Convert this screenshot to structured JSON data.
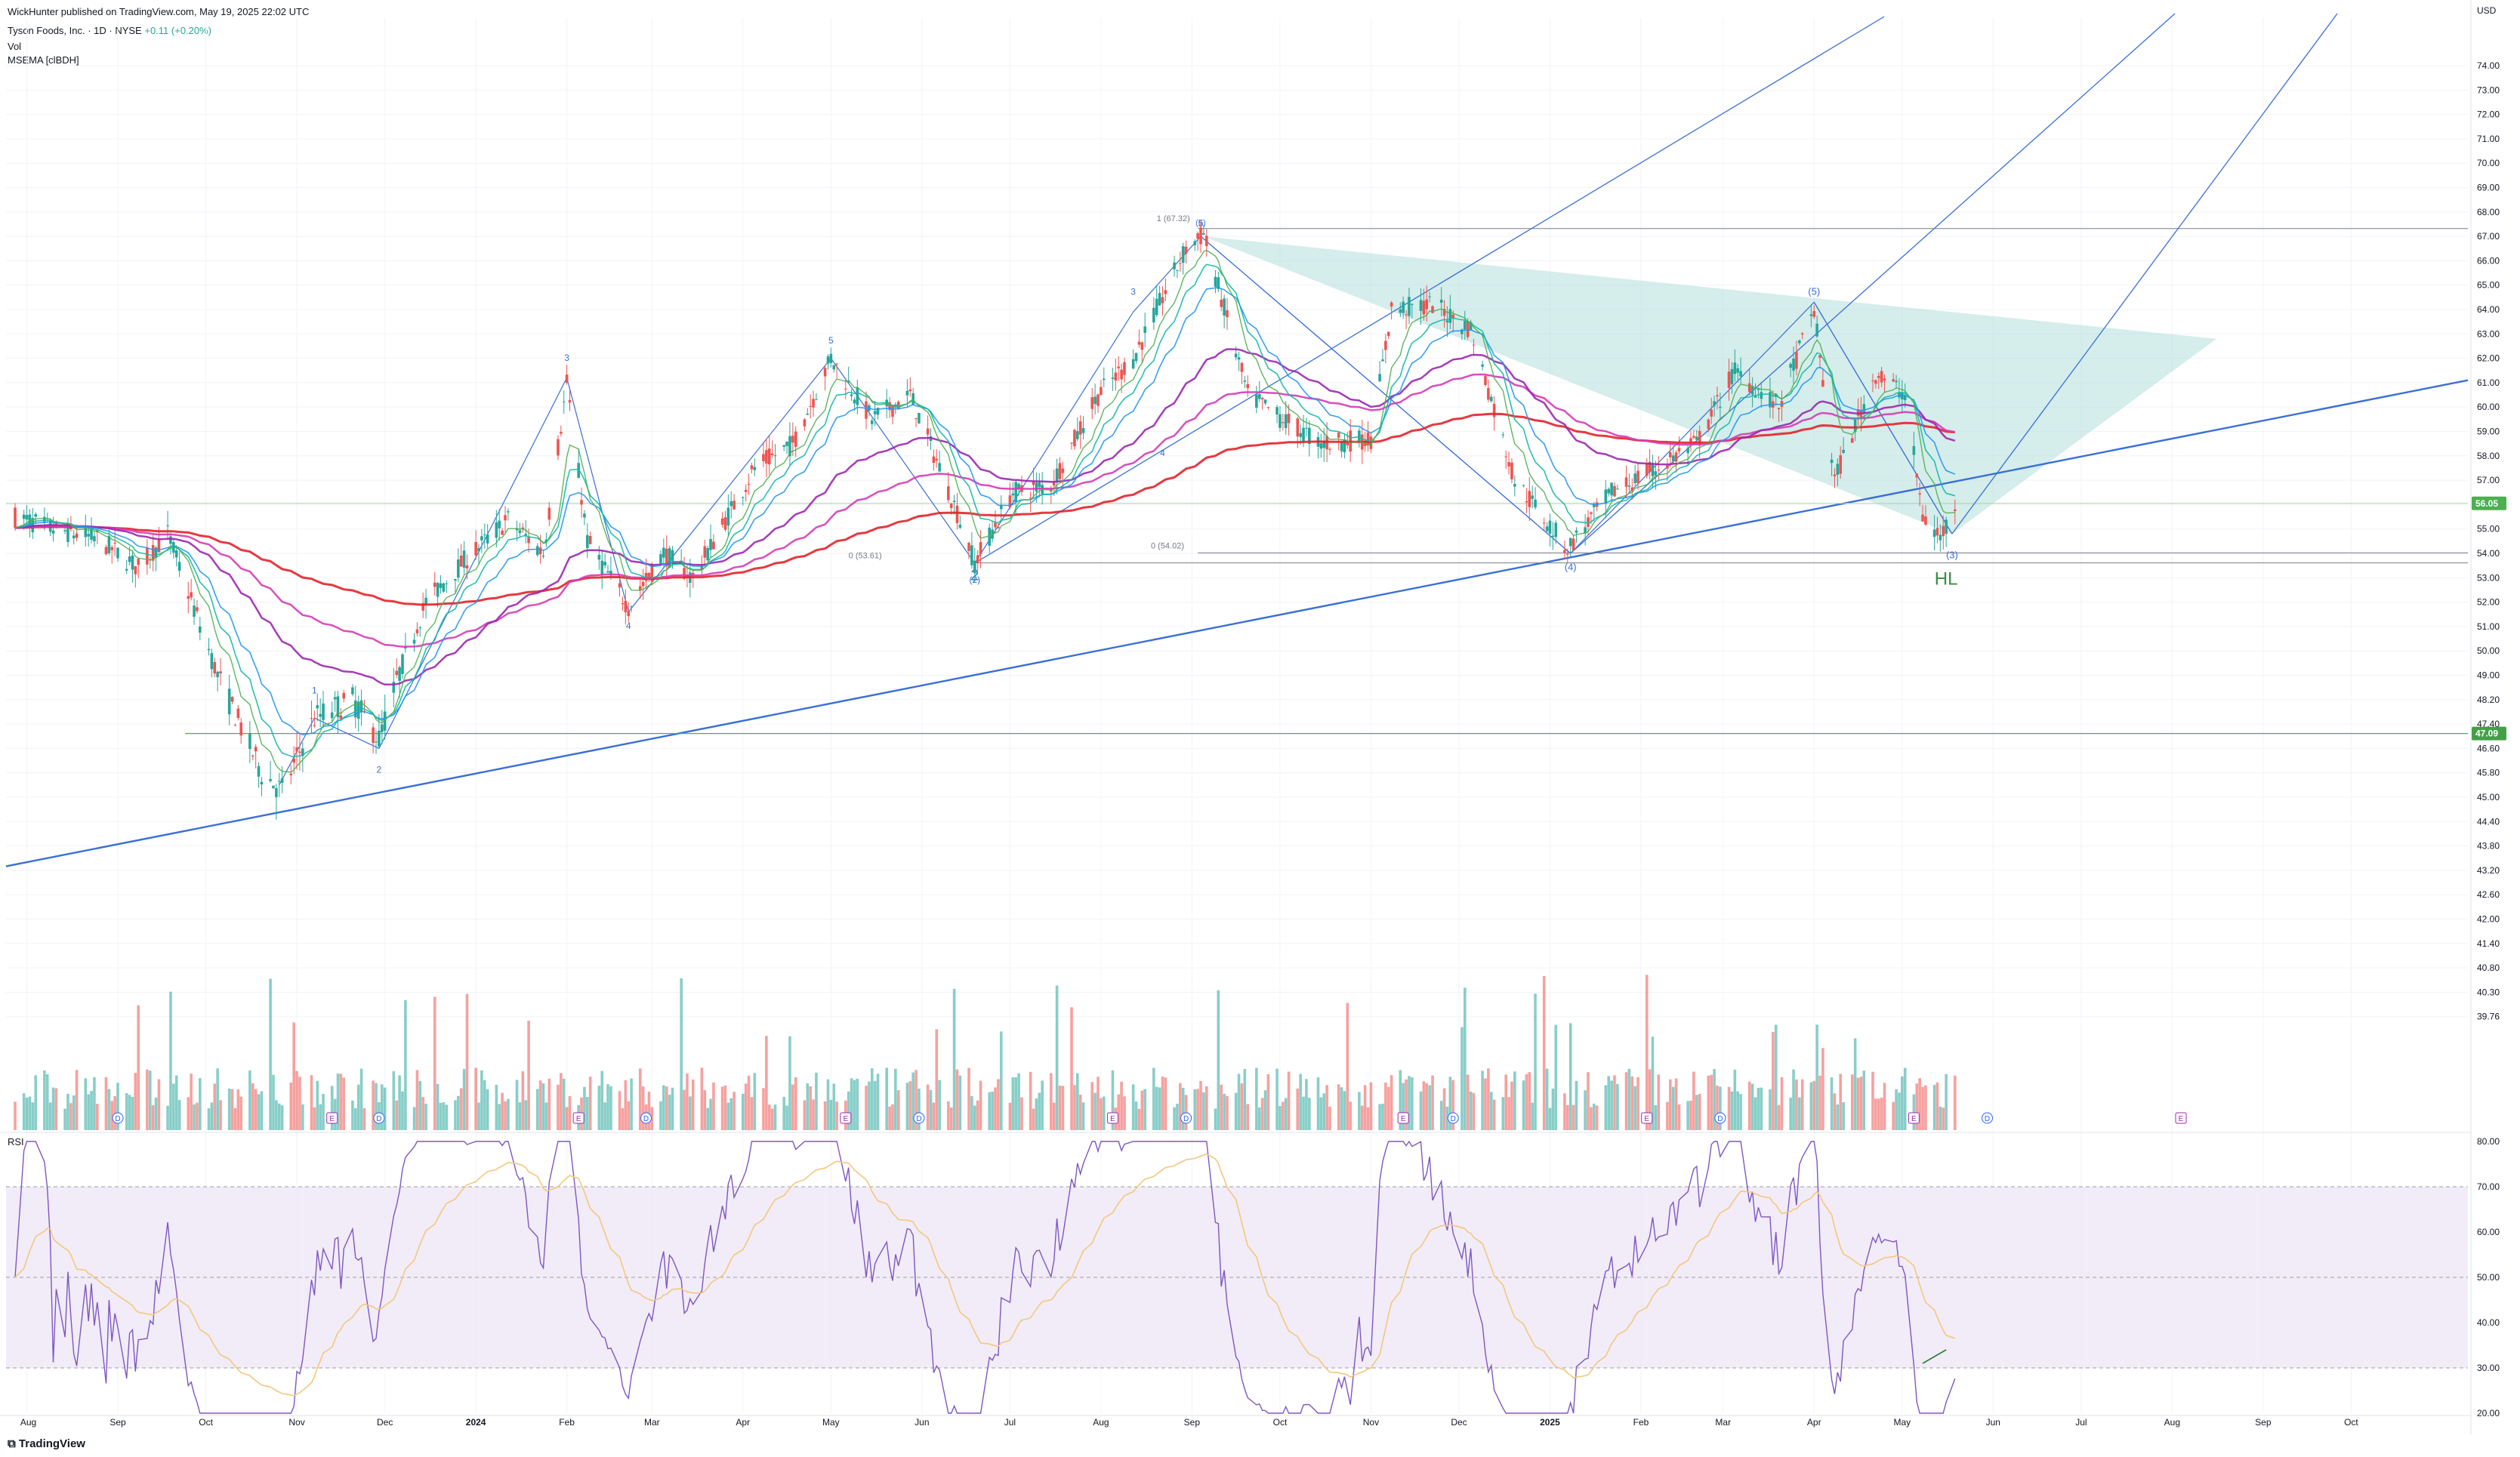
{
  "header": {
    "publisher_line": "WickHunter published on TradingView.com, May 19, 2025 22:02 UTC",
    "symbol_line": "Tyson Foods, Inc. · 1D · NYSE",
    "change": "+0.11 (+0.20%)",
    "vol_label": "Vol",
    "ma_label": "MSEMA [clBDH]",
    "rsi_label": "RSI",
    "currency": "USD"
  },
  "footer": {
    "brand": "TradingView"
  },
  "colors": {
    "bull": "#26a69a",
    "bear": "#ef5350",
    "ma_red": "#e3242b",
    "ma_purple": "#9c27b0",
    "ma_magenta": "#d63bb5",
    "ma_blue": "#2196f3",
    "ma_teal": "#14b8a6",
    "ma_green": "#4caf50",
    "trend": "#3a6fd8",
    "zone": "#b2dfdb",
    "rsi": "#7e57c2",
    "rsi_ma": "#f4c77e",
    "rsi_band": "#ede7f6"
  },
  "chart_data": {
    "type": "candlestick",
    "price_axis": {
      "ticks": [
        "74.00",
        "73.00",
        "72.00",
        "71.00",
        "70.00",
        "69.00",
        "68.00",
        "67.00",
        "66.00",
        "65.00",
        "64.00",
        "63.00",
        "62.00",
        "61.00",
        "60.00",
        "59.00",
        "58.00",
        "57.00",
        "56.00",
        "55.00",
        "54.00",
        "53.00",
        "52.00",
        "51.00",
        "50.00",
        "49.00",
        "48.20",
        "47.40",
        "46.60",
        "45.80",
        "45.00",
        "44.40",
        "43.80",
        "43.20",
        "42.60",
        "42.00",
        "41.40",
        "40.80",
        "40.30",
        "39.76"
      ],
      "last_price": "56.05",
      "level_label": "47.09"
    },
    "time_axis": [
      "Aug",
      "Sep",
      "Oct",
      "Nov",
      "Dec",
      "2024",
      "Feb",
      "Mar",
      "Apr",
      "May",
      "Jun",
      "Jul",
      "Aug",
      "Sep",
      "Oct",
      "Nov",
      "Dec",
      "2025",
      "Feb",
      "Mar",
      "Apr",
      "May",
      "Jun",
      "Jul",
      "Aug",
      "Sep",
      "Oct"
    ],
    "rsi_axis": [
      "80.00",
      "70.00",
      "60.00",
      "50.00",
      "40.00",
      "30.00",
      "20.00"
    ],
    "price_path": [
      [
        "2023-07-28",
        55.5
      ],
      [
        "2023-08-10",
        55.0
      ],
      [
        "2023-08-25",
        54.6
      ],
      [
        "2023-09-08",
        53.4
      ],
      [
        "2023-09-18",
        54.8
      ],
      [
        "2023-10-05",
        49.0
      ],
      [
        "2023-10-20",
        45.8
      ],
      [
        "2023-10-27",
        45.2
      ],
      [
        "2023-11-07",
        47.6
      ],
      [
        "2023-11-20",
        48.2
      ],
      [
        "2023-11-29",
        46.9
      ],
      [
        "2023-12-15",
        52.0
      ],
      [
        "2023-12-29",
        53.8
      ],
      [
        "2024-01-12",
        55.4
      ],
      [
        "2024-01-24",
        54.0
      ],
      [
        "2024-02-01",
        61.0
      ],
      [
        "2024-02-08",
        54.5
      ],
      [
        "2024-02-22",
        51.8
      ],
      [
        "2024-03-05",
        54.0
      ],
      [
        "2024-03-15",
        53.0
      ],
      [
        "2024-04-05",
        57.5
      ],
      [
        "2024-04-18",
        58.5
      ],
      [
        "2024-05-01",
        62.0
      ],
      [
        "2024-05-15",
        59.5
      ],
      [
        "2024-05-28",
        60.5
      ],
      [
        "2024-06-12",
        56.0
      ],
      [
        "2024-06-19",
        53.6
      ],
      [
        "2024-07-02",
        56.5
      ],
      [
        "2024-07-15",
        56.8
      ],
      [
        "2024-07-31",
        60.5
      ],
      [
        "2024-08-12",
        62.0
      ],
      [
        "2024-08-30",
        66.5
      ],
      [
        "2024-09-05",
        67.1
      ],
      [
        "2024-09-20",
        60.5
      ],
      [
        "2024-10-02",
        59.5
      ],
      [
        "2024-10-15",
        58.5
      ],
      [
        "2024-11-01",
        58.7
      ],
      [
        "2024-11-08",
        64.0
      ],
      [
        "2024-11-22",
        64.2
      ],
      [
        "2024-12-05",
        63.2
      ],
      [
        "2024-12-20",
        57.0
      ],
      [
        "2025-01-07",
        54.2
      ],
      [
        "2025-01-22",
        56.5
      ],
      [
        "2025-02-05",
        57.4
      ],
      [
        "2025-02-20",
        58.5
      ],
      [
        "2025-03-05",
        61.5
      ],
      [
        "2025-03-20",
        60.0
      ],
      [
        "2025-04-01",
        64.0
      ],
      [
        "2025-04-08",
        57.0
      ],
      [
        "2025-04-22",
        61.4
      ],
      [
        "2025-05-02",
        60.5
      ],
      [
        "2025-05-08",
        55.5
      ],
      [
        "2025-05-14",
        54.6
      ],
      [
        "2025-05-19",
        56.05
      ]
    ],
    "wave_labels": [
      "1",
      "2",
      "3",
      "4",
      "5",
      "(1)",
      "(2)",
      "(3)",
      "(4)",
      "(5)"
    ],
    "fib_labels": [
      "1 (67.32)",
      "0 (54.02)",
      "0 (53.61)"
    ],
    "pivot_label_2": "2",
    "hl_label": "HL",
    "markers": [
      "D",
      "E"
    ],
    "volume_note": "Volume histogram",
    "rsi_bands": [
      30,
      70
    ],
    "grid": true
  }
}
